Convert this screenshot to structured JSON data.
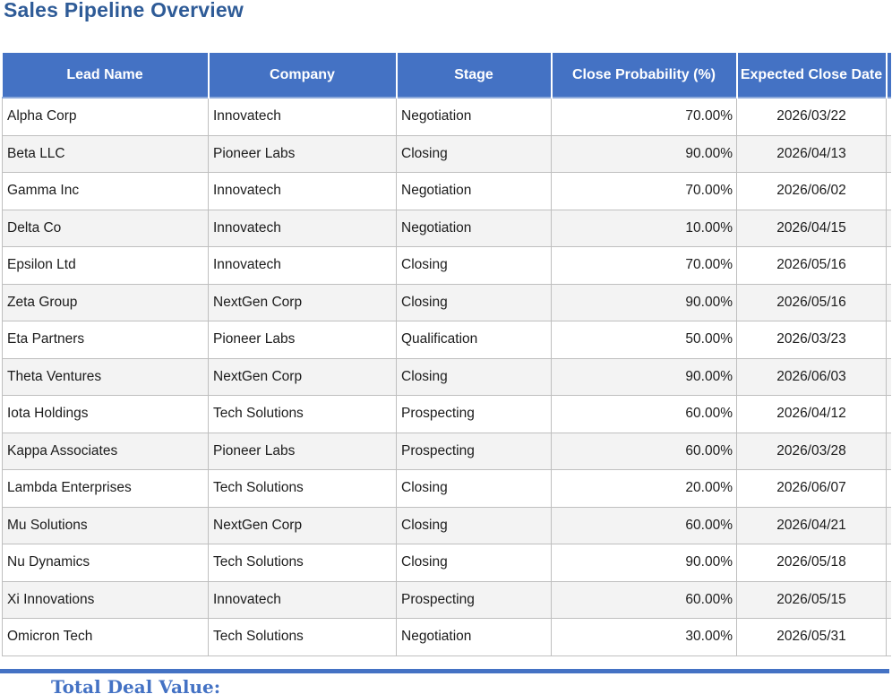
{
  "title": "Sales Pipeline Overview",
  "colors": {
    "accent": "#4472C4",
    "title_text": "#2E5B97",
    "header_text": "#FFFFFF",
    "band_row": "#F3F3F3",
    "grid_border": "#BFBFBF"
  },
  "table": {
    "columns": [
      {
        "key": "lead_name",
        "label": "Lead Name",
        "align": "left"
      },
      {
        "key": "company",
        "label": "Company",
        "align": "left"
      },
      {
        "key": "stage",
        "label": "Stage",
        "align": "left"
      },
      {
        "key": "close_probability",
        "label": "Close Probability (%)",
        "align": "right"
      },
      {
        "key": "expected_close_date",
        "label": "Expected Close Date",
        "align": "center"
      },
      {
        "key": "clipped_extra",
        "label": "",
        "align": "left"
      }
    ],
    "rows": [
      {
        "lead_name": "Alpha Corp",
        "company": "Innovatech",
        "stage": "Negotiation",
        "close_probability": "70.00%",
        "expected_close_date": "2026/03/22",
        "clipped_extra": ""
      },
      {
        "lead_name": "Beta LLC",
        "company": "Pioneer Labs",
        "stage": "Closing",
        "close_probability": "90.00%",
        "expected_close_date": "2026/04/13",
        "clipped_extra": ""
      },
      {
        "lead_name": "Gamma Inc",
        "company": "Innovatech",
        "stage": "Negotiation",
        "close_probability": "70.00%",
        "expected_close_date": "2026/06/02",
        "clipped_extra": ""
      },
      {
        "lead_name": "Delta Co",
        "company": "Innovatech",
        "stage": "Negotiation",
        "close_probability": "10.00%",
        "expected_close_date": "2026/04/15",
        "clipped_extra": ""
      },
      {
        "lead_name": "Epsilon Ltd",
        "company": "Innovatech",
        "stage": "Closing",
        "close_probability": "70.00%",
        "expected_close_date": "2026/05/16",
        "clipped_extra": ""
      },
      {
        "lead_name": "Zeta Group",
        "company": "NextGen Corp",
        "stage": "Closing",
        "close_probability": "90.00%",
        "expected_close_date": "2026/05/16",
        "clipped_extra": ""
      },
      {
        "lead_name": "Eta Partners",
        "company": "Pioneer Labs",
        "stage": "Qualification",
        "close_probability": "50.00%",
        "expected_close_date": "2026/03/23",
        "clipped_extra": ""
      },
      {
        "lead_name": "Theta Ventures",
        "company": "NextGen Corp",
        "stage": "Closing",
        "close_probability": "90.00%",
        "expected_close_date": "2026/06/03",
        "clipped_extra": ""
      },
      {
        "lead_name": "Iota Holdings",
        "company": "Tech Solutions",
        "stage": "Prospecting",
        "close_probability": "60.00%",
        "expected_close_date": "2026/04/12",
        "clipped_extra": ""
      },
      {
        "lead_name": "Kappa Associates",
        "company": "Pioneer Labs",
        "stage": "Prospecting",
        "close_probability": "60.00%",
        "expected_close_date": "2026/03/28",
        "clipped_extra": ""
      },
      {
        "lead_name": "Lambda Enterprises",
        "company": "Tech Solutions",
        "stage": "Closing",
        "close_probability": "20.00%",
        "expected_close_date": "2026/06/07",
        "clipped_extra": ""
      },
      {
        "lead_name": "Mu Solutions",
        "company": "NextGen Corp",
        "stage": "Closing",
        "close_probability": "60.00%",
        "expected_close_date": "2026/04/21",
        "clipped_extra": ""
      },
      {
        "lead_name": "Nu Dynamics",
        "company": "Tech Solutions",
        "stage": "Closing",
        "close_probability": "90.00%",
        "expected_close_date": "2026/05/18",
        "clipped_extra": ""
      },
      {
        "lead_name": "Xi Innovations",
        "company": "Innovatech",
        "stage": "Prospecting",
        "close_probability": "60.00%",
        "expected_close_date": "2026/05/15",
        "clipped_extra": ""
      },
      {
        "lead_name": "Omicron Tech",
        "company": "Tech Solutions",
        "stage": "Negotiation",
        "close_probability": "30.00%",
        "expected_close_date": "2026/05/31",
        "clipped_extra": ""
      }
    ]
  },
  "footer": {
    "total_label": "Total Deal Value:"
  }
}
